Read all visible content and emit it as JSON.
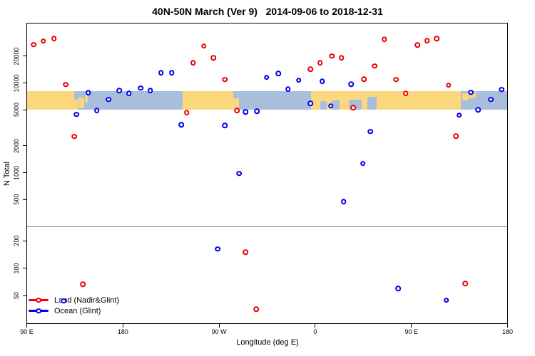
{
  "title": "40N-50N March (Ver 9)   2014-09-06 to 2018-12-31",
  "axes": {
    "y_label": "N Total",
    "x_label": "Longitude (deg E)",
    "y_scale": "log",
    "y_ticks": [
      20000,
      10000,
      5000,
      2000,
      1000,
      500,
      200,
      100,
      50
    ],
    "x_ticks": [
      {
        "d": 90,
        "label": "90 E"
      },
      {
        "d": 180,
        "label": "180"
      },
      {
        "d": 270,
        "label": "90 W"
      },
      {
        "d": 360,
        "label": "0"
      },
      {
        "d": 450,
        "label": "90 E"
      },
      {
        "d": 540,
        "label": "180"
      }
    ]
  },
  "legend": [
    {
      "label": "Land (Nadir&Glint)",
      "color": "#ee0000"
    },
    {
      "label": "Ocean (Glint)",
      "color": "#0000ee"
    }
  ],
  "colors": {
    "land_marker": "#ee0000",
    "ocean_marker": "#0000ee",
    "land_band": "#fbd87e",
    "ocean_band": "#a9bedc",
    "threshold_line": "#808080"
  },
  "chart_data": {
    "type": "scatter",
    "title": "40N-50N March (Ver 9)   2014-09-06 to 2018-12-31",
    "xlabel": "Longitude (deg E)",
    "ylabel": "N Total",
    "x_axis": {
      "span_display_deg": [
        90,
        540
      ],
      "note": "axis starts at 90E, wraps through 180/-180 to 180 again"
    },
    "ylim": [
      30,
      40000
    ],
    "points_format": "[display_longitude_deg, N_total]",
    "series": [
      {
        "name": "Land (Nadir&Glint)",
        "color": "#ee0000",
        "points": [
          [
            97,
            26500
          ],
          [
            106,
            29000
          ],
          [
            116,
            31000
          ],
          [
            127,
            9500
          ],
          [
            135,
            2500
          ],
          [
            240,
            4600
          ],
          [
            246,
            16500
          ],
          [
            256,
            25500
          ],
          [
            265,
            18900
          ],
          [
            276,
            10800
          ],
          [
            287,
            4870
          ],
          [
            356,
            14100
          ],
          [
            365,
            16600
          ],
          [
            376,
            19700
          ],
          [
            385,
            18900
          ],
          [
            396,
            5260
          ],
          [
            406,
            10900
          ],
          [
            416,
            15300
          ],
          [
            425,
            30400
          ],
          [
            436,
            10800
          ],
          [
            445,
            7600
          ],
          [
            456,
            26300
          ],
          [
            465,
            29300
          ],
          [
            474,
            31000
          ],
          [
            485,
            9300
          ],
          [
            492,
            2530
          ],
          [
            143,
            66
          ],
          [
            295,
            148
          ],
          [
            305,
            35
          ],
          [
            501,
            67
          ]
        ]
      },
      {
        "name": "Ocean (Glint)",
        "color": "#0000ee",
        "points": [
          [
            137,
            4400
          ],
          [
            148,
            7700
          ],
          [
            156,
            4870
          ],
          [
            167,
            6470
          ],
          [
            177,
            8100
          ],
          [
            186,
            7520
          ],
          [
            197,
            8650
          ],
          [
            206,
            8130
          ],
          [
            216,
            12900
          ],
          [
            226,
            12800
          ],
          [
            235,
            3370
          ],
          [
            269,
            161
          ],
          [
            276,
            3320
          ],
          [
            289,
            970
          ],
          [
            295,
            4690
          ],
          [
            306,
            4780
          ],
          [
            315,
            11400
          ],
          [
            326,
            12600
          ],
          [
            335,
            8430
          ],
          [
            345,
            10600
          ],
          [
            356,
            5860
          ],
          [
            367,
            10300
          ],
          [
            375,
            5500
          ],
          [
            387,
            470
          ],
          [
            394,
            9580
          ],
          [
            405,
            1250
          ],
          [
            412,
            2840
          ],
          [
            495,
            4340
          ],
          [
            506,
            7760
          ],
          [
            513,
            4980
          ],
          [
            525,
            6470
          ],
          [
            535,
            8340
          ],
          [
            125,
            43
          ],
          [
            438,
            59
          ],
          [
            483,
            44
          ]
        ]
      }
    ],
    "map_band": {
      "n_range": [
        5000,
        8000
      ],
      "segments": [
        {
          "from": 90,
          "to": 138.3,
          "type": "land"
        },
        {
          "from": 138.3,
          "to": 236,
          "type": "ocean"
        },
        {
          "from": 236,
          "to": 289.3,
          "type": "land"
        },
        {
          "from": 289.3,
          "to": 356.7,
          "type": "ocean"
        },
        {
          "from": 356.7,
          "to": 496.7,
          "type": "land"
        },
        {
          "from": 496.7,
          "to": 540,
          "type": "ocean"
        }
      ],
      "patches": [
        {
          "x": [
            138.8,
            144
          ],
          "y": [
            0.35,
            0.9
          ],
          "type": "land"
        },
        {
          "x": [
            144.5,
            147.5
          ],
          "y": [
            0.2,
            0.6
          ],
          "type": "land"
        },
        {
          "x": [
            134.5,
            138.3
          ],
          "y": [
            0,
            0.45
          ],
          "type": "ocean"
        },
        {
          "x": [
            283.5,
            288.7
          ],
          "y": [
            0,
            0.4
          ],
          "type": "ocean"
        },
        {
          "x": [
            365,
            371
          ],
          "y": [
            0.55,
            1
          ],
          "type": "ocean"
        },
        {
          "x": [
            376,
            383
          ],
          "y": [
            0.5,
            1
          ],
          "type": "ocean"
        },
        {
          "x": [
            392,
            404
          ],
          "y": [
            0.45,
            1
          ],
          "type": "ocean"
        },
        {
          "x": [
            409,
            418
          ],
          "y": [
            0.3,
            1
          ],
          "type": "ocean"
        },
        {
          "x": [
            498,
            504
          ],
          "y": [
            0.1,
            0.5
          ],
          "type": "land"
        },
        {
          "x": [
            505,
            511
          ],
          "y": [
            0,
            0.4
          ],
          "type": "land"
        }
      ]
    },
    "threshold_line": {
      "n_value": 250,
      "color": "#808080"
    },
    "legend_position": "bottom-left",
    "grid": false
  }
}
